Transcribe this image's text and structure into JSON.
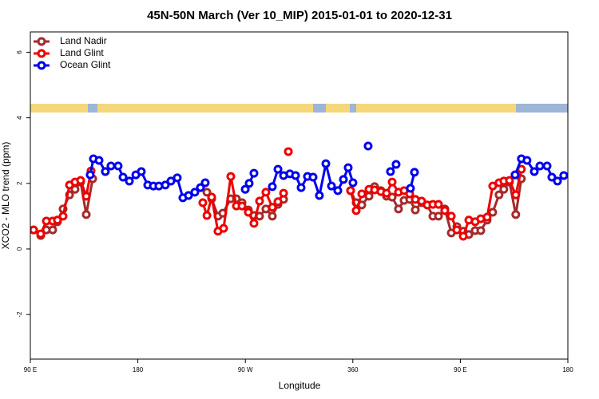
{
  "chart_data": {
    "type": "line",
    "title": "45N-50N March (Ver 10_MIP)   2015-01-01 to 2020-12-31",
    "xlabel": "Longitude",
    "ylabel": "XCO2 - MLO trend (ppm)",
    "xlim": [
      90,
      540
    ],
    "ylim": [
      -3.36,
      6.62
    ],
    "xticks": [
      {
        "value": 90,
        "label": "90 E"
      },
      180,
      {
        "value": 270,
        "label": "90 W"
      },
      360,
      {
        "value": 450,
        "label": "90 E"
      },
      {
        "value": 540,
        "label": "180"
      }
    ],
    "yticks": [
      -2,
      0,
      2,
      4,
      6
    ],
    "legend": "upper left",
    "series": [
      {
        "name": "Land Nadir",
        "color": "#a52a2a",
        "x": [
          92.7,
          98.7,
          103.4,
          108.7,
          112.7,
          117.4,
          122.8,
          127.4,
          132.1,
          136.8,
          142.2,
          null,
          237.8,
          241.8,
          247.1,
          251.1,
          257.8,
          262.5,
          267.2,
          272.5,
          277.2,
          281.9,
          287.2,
          292.6,
          297.3,
          302,
          null,
          358.1,
          362.8,
          367.5,
          373.5,
          378.2,
          383.5,
          388.2,
          392.9,
          398.2,
          402.9,
          407.6,
          412.3,
          417.6,
          422.3,
          427,
          431.7,
          437,
          442.4,
          447.1,
          452.4,
          457.1,
          462.4,
          467.1,
          472.4,
          477.1,
          482.4,
          486.4,
          491.1,
          496.4,
          501.1
        ],
        "values": [
          0.58,
          0.41,
          0.58,
          0.58,
          0.83,
          1.22,
          1.65,
          1.82,
          2.04,
          1.05,
          2.14,
          null,
          1.73,
          1.53,
          1.0,
          1.09,
          1.53,
          1.53,
          1.41,
          1.19,
          1.02,
          1.0,
          1.22,
          1.0,
          1.36,
          1.51,
          null,
          1.78,
          1.41,
          1.34,
          1.61,
          1.9,
          1.78,
          1.61,
          1.58,
          1.22,
          1.48,
          1.51,
          1.19,
          1.41,
          1.34,
          1.0,
          1.0,
          1.22,
          0.49,
          0.68,
          0.54,
          0.44,
          0.56,
          0.56,
          0.88,
          1.12,
          1.65,
          1.82,
          2.04,
          1.05,
          2.14
        ]
      },
      {
        "name": "Land Glint",
        "color": "#ee0000",
        "x": [
          92.7,
          98.7,
          103.4,
          108.7,
          112.7,
          117.4,
          122.8,
          127.4,
          132.1,
          136.8,
          140.8,
          null,
          234.4,
          237.8,
          241.8,
          247.1,
          251.8,
          257.8,
          262.5,
          267.2,
          272.5,
          277.2,
          281.9,
          287.2,
          292.6,
          297.3,
          302,
          null,
          306,
          null,
          358.1,
          362.8,
          367.5,
          373.5,
          378.2,
          383.5,
          388.2,
          392.9,
          398.2,
          402.9,
          407.6,
          412.3,
          417.6,
          422.3,
          427,
          431.7,
          437,
          442.4,
          447.1,
          452.4,
          457.1,
          462.4,
          467.1,
          472.4,
          477.1,
          482.4,
          486.4,
          491.1,
          496.4,
          501.1
        ],
        "values": [
          0.58,
          0.46,
          0.85,
          0.85,
          0.88,
          1.0,
          1.95,
          2.04,
          2.09,
          1.61,
          2.38,
          null,
          1.41,
          1.02,
          1.58,
          0.54,
          0.63,
          2.21,
          1.31,
          1.31,
          1.12,
          0.78,
          1.46,
          1.73,
          1.27,
          1.44,
          1.7,
          null,
          2.97,
          null,
          1.78,
          1.17,
          1.68,
          1.82,
          1.8,
          1.75,
          1.7,
          2.04,
          1.73,
          1.78,
          1.68,
          1.51,
          1.46,
          1.34,
          1.36,
          1.36,
          1.17,
          1.0,
          0.58,
          0.39,
          0.88,
          0.83,
          0.92,
          0.97,
          1.92,
          2.02,
          2.07,
          2.09,
          1.65,
          2.43
        ]
      },
      {
        "name": "Ocean Glint",
        "color": "#0000ee",
        "x": [
          140.1,
          142.8,
          147.5,
          152.8,
          157.5,
          163.5,
          167.6,
          172.9,
          178.3,
          182.9,
          188.3,
          193,
          197.6,
          203,
          207.7,
          213,
          217.7,
          222.4,
          227.7,
          232.4,
          236.4,
          null,
          269.9,
          273.2,
          277.2,
          null,
          292.6,
          297.3,
          302,
          307.3,
          312,
          316.7,
          322,
          326.7,
          332,
          337.4,
          342.1,
          347.4,
          352.1,
          356.1,
          360.1,
          null,
          372.8,
          null,
          391.5,
          396.2,
          null,
          408.2,
          411.6,
          null,
          495.8,
          501.1,
          505.8,
          511.9,
          516.6,
          522.6,
          526.6,
          531.3,
          536.6
        ],
        "values": [
          2.26,
          2.75,
          2.7,
          2.36,
          2.53,
          2.53,
          2.19,
          2.07,
          2.26,
          2.36,
          1.95,
          1.92,
          1.92,
          1.95,
          2.07,
          2.17,
          1.56,
          1.63,
          1.73,
          1.87,
          2.02,
          null,
          1.82,
          2.0,
          2.31,
          null,
          1.9,
          2.43,
          2.24,
          2.29,
          2.24,
          1.87,
          2.21,
          2.19,
          1.63,
          2.6,
          1.92,
          1.78,
          2.12,
          2.48,
          2.02,
          null,
          3.14,
          null,
          2.36,
          2.58,
          null,
          1.85,
          2.34,
          null,
          2.26,
          2.75,
          2.7,
          2.36,
          2.53,
          2.53,
          2.19,
          2.07,
          2.24
        ]
      }
    ]
  }
}
